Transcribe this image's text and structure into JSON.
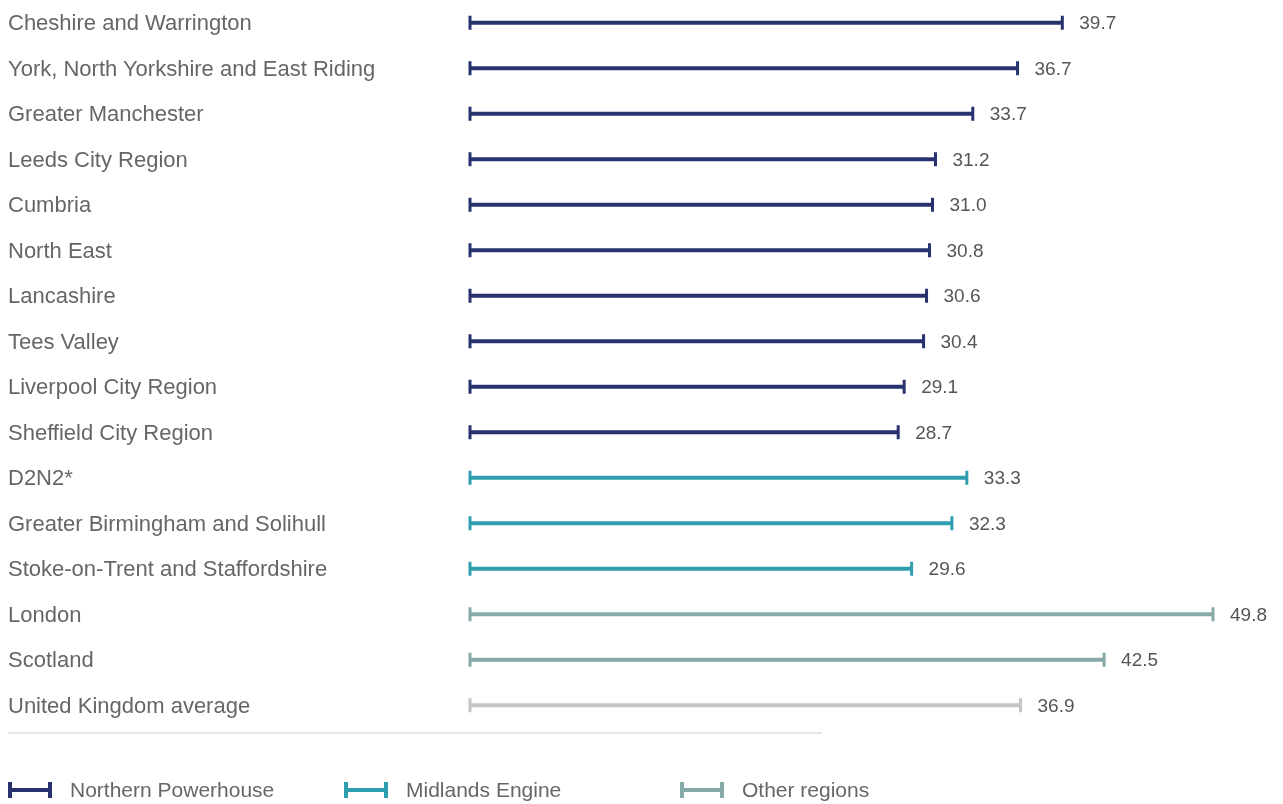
{
  "chart_data": {
    "type": "bar",
    "orientation": "horizontal",
    "categories": [
      "Cheshire and Warrington",
      "York, North Yorkshire and East Riding",
      "Greater Manchester",
      "Leeds City Region",
      "Cumbria",
      "North East",
      "Lancashire",
      "Tees Valley",
      "Liverpool City Region",
      "Sheffield City Region",
      "D2N2*",
      "Greater Birmingham and Solihull",
      "Stoke-on-Trent and Staffordshire",
      "London",
      "Scotland",
      "United Kingdom average"
    ],
    "series": [
      {
        "name": "Northern Powerhouse",
        "color": "#27326e",
        "values": [
          39.7,
          36.7,
          33.7,
          31.2,
          31.0,
          30.8,
          30.6,
          30.4,
          29.1,
          28.7,
          null,
          null,
          null,
          null,
          null,
          null
        ],
        "value_labels": [
          "39.7",
          "36.7",
          "33.7",
          "31.2",
          "31.0",
          "30.8",
          "30.6",
          "30.4",
          "29.1",
          "28.7",
          null,
          null,
          null,
          null,
          null,
          null
        ]
      },
      {
        "name": "Midlands Engine",
        "color": "#2e9fae",
        "values": [
          null,
          null,
          null,
          null,
          null,
          null,
          null,
          null,
          null,
          null,
          33.3,
          32.3,
          29.6,
          null,
          null,
          null
        ],
        "value_labels": [
          null,
          null,
          null,
          null,
          null,
          null,
          null,
          null,
          null,
          null,
          "33.3",
          "32.3",
          "29.6",
          null,
          null,
          null
        ]
      },
      {
        "name": "Other regions",
        "color": "#86aaa8",
        "values": [
          null,
          null,
          null,
          null,
          null,
          null,
          null,
          null,
          null,
          null,
          null,
          null,
          null,
          49.8,
          42.5,
          null
        ],
        "value_labels": [
          null,
          null,
          null,
          null,
          null,
          null,
          null,
          null,
          null,
          null,
          null,
          null,
          null,
          "49.8",
          "42.5",
          null
        ]
      },
      {
        "color": "#c4c4c4",
        "values": [
          null,
          null,
          null,
          null,
          null,
          null,
          null,
          null,
          null,
          null,
          null,
          null,
          null,
          null,
          null,
          36.9
        ],
        "value_labels": [
          null,
          null,
          null,
          null,
          null,
          null,
          null,
          null,
          null,
          null,
          null,
          null,
          null,
          null,
          null,
          "36.9"
        ]
      }
    ],
    "legend": "bottom"
  }
}
